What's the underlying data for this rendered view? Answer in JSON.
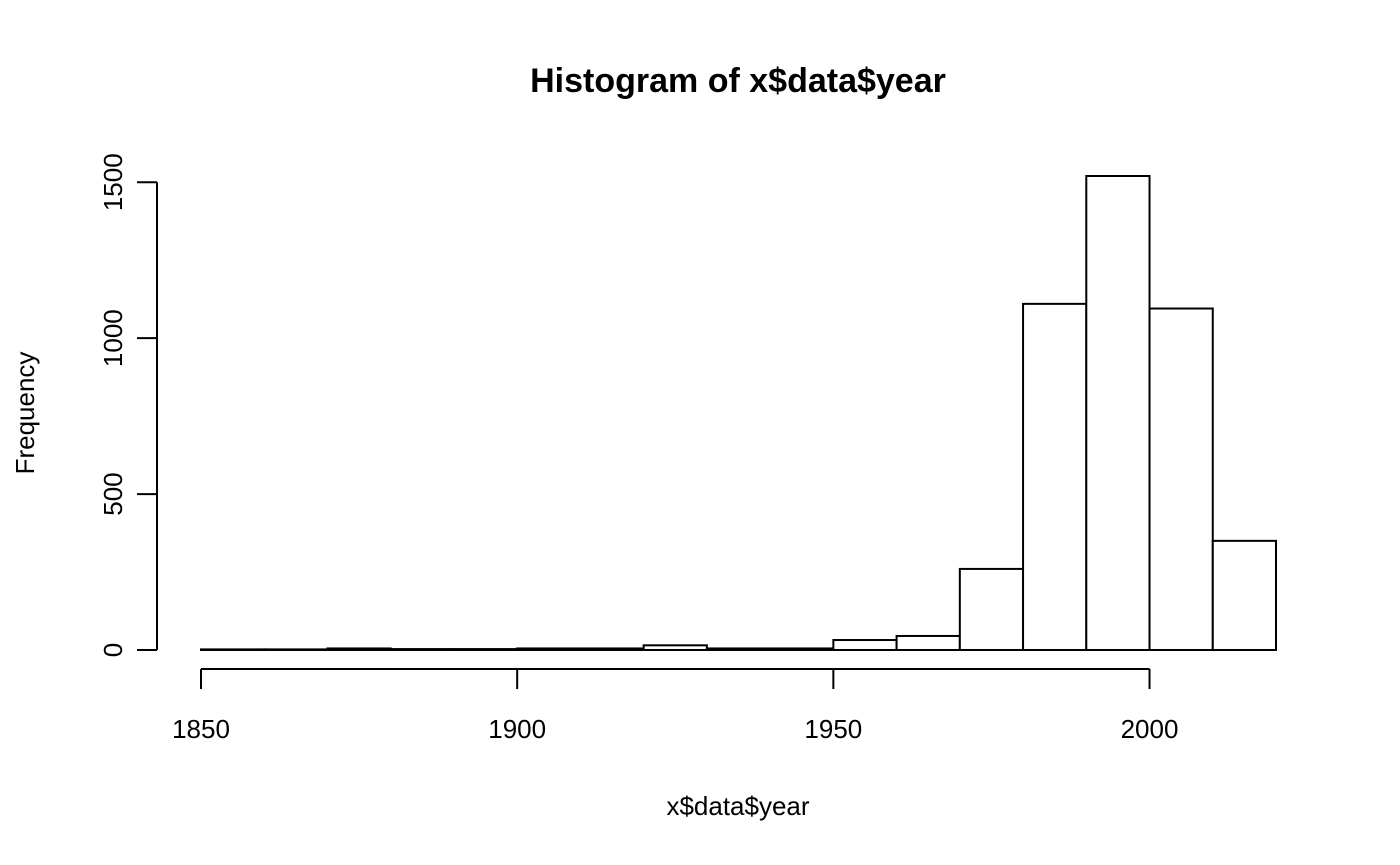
{
  "chart_data": {
    "type": "bar",
    "title": "Histogram of x$data$year",
    "xlabel": "x$data$year",
    "ylabel": "Frequency",
    "bin_edges": [
      1850,
      1860,
      1870,
      1880,
      1890,
      1900,
      1910,
      1920,
      1930,
      1940,
      1950,
      1960,
      1970,
      1980,
      1990,
      2000,
      2010,
      2020
    ],
    "values": [
      2,
      2,
      5,
      3,
      3,
      5,
      5,
      15,
      5,
      5,
      32,
      45,
      260,
      1110,
      1520,
      1095,
      350
    ],
    "x_ticks": [
      1850,
      1900,
      1950,
      2000
    ],
    "y_ticks": [
      0,
      500,
      1000,
      1500
    ],
    "xlim": [
      1850,
      2020
    ],
    "ylim": [
      0,
      1520
    ],
    "grid": false,
    "bar_fill": "#ffffff",
    "bar_stroke": "#000000"
  }
}
